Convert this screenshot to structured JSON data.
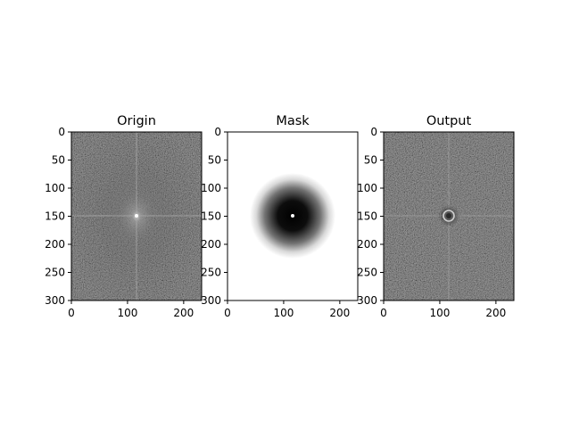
{
  "chart_data": [
    {
      "type": "image",
      "title": "Origin",
      "colormap": "gray",
      "image_width": 232,
      "image_height": 300,
      "xlim": [
        0,
        232
      ],
      "ylim": [
        300,
        0
      ],
      "xticks": [
        0,
        100,
        200
      ],
      "yticks": [
        0,
        50,
        100,
        150,
        200,
        250,
        300
      ],
      "content": "2D Fourier magnitude spectrum (log scale): grainy dark-gray noise with bright horizontal and vertical axes through center and a bright peak at center",
      "center": [
        116,
        150
      ]
    },
    {
      "type": "image",
      "title": "Mask",
      "colormap": "gray",
      "image_width": 232,
      "image_height": 300,
      "xlim": [
        0,
        232
      ],
      "ylim": [
        300,
        0
      ],
      "xticks": [
        0,
        100,
        200
      ],
      "yticks": [
        0,
        50,
        100,
        150,
        200,
        250,
        300
      ],
      "content": "White field with a soft black radial blob centered on the spectrum center and a tiny white dot at the exact center",
      "center": [
        116,
        150
      ]
    },
    {
      "type": "image",
      "title": "Output",
      "colormap": "gray",
      "image_width": 232,
      "image_height": 300,
      "xlim": [
        0,
        232
      ],
      "ylim": [
        300,
        0
      ],
      "xticks": [
        0,
        100,
        200
      ],
      "yticks": [
        0,
        50,
        100,
        150,
        200,
        250,
        300
      ],
      "content": "Spectrum multiplied by mask: center region suppressed leaving a small bright ring around the center",
      "center": [
        116,
        150
      ]
    }
  ]
}
